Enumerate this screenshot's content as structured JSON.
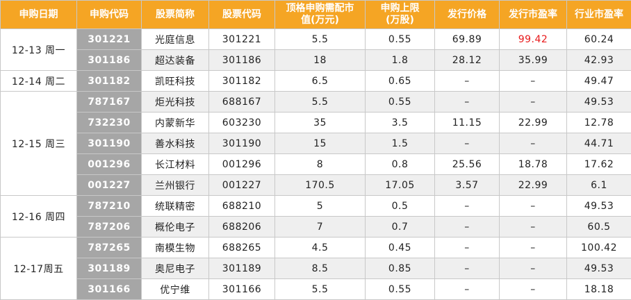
{
  "table": {
    "headers": [
      "申购日期",
      "申购代码",
      "股票简称",
      "股票代码",
      "顶格申购需配市\n值(万元)",
      "申购上限\n(万股)",
      "发行价格",
      "发行市盈率",
      "行业市盈率"
    ],
    "highlight": {
      "group": 0,
      "row": 0,
      "col": 6,
      "color": "#e8191b"
    },
    "groups": [
      {
        "date": "12-13 周一",
        "rows": [
          [
            "301221",
            "光庭信息",
            "301221",
            "5.5",
            "0.55",
            "69.89",
            "99.42",
            "60.24"
          ],
          [
            "301186",
            "超达装备",
            "301186",
            "18",
            "1.8",
            "28.12",
            "35.99",
            "42.93"
          ]
        ]
      },
      {
        "date": "12-14 周二",
        "rows": [
          [
            "301182",
            "凯旺科技",
            "301182",
            "6.5",
            "0.65",
            "–",
            "–",
            "49.47"
          ]
        ]
      },
      {
        "date": "12-15 周三",
        "rows": [
          [
            "787167",
            "炬光科技",
            "688167",
            "5.5",
            "0.55",
            "–",
            "–",
            "49.53"
          ],
          [
            "732230",
            "内蒙新华",
            "603230",
            "35",
            "3.5",
            "11.15",
            "22.99",
            "12.78"
          ],
          [
            "301190",
            "善水科技",
            "301190",
            "15",
            "1.5",
            "–",
            "–",
            "44.71"
          ],
          [
            "001296",
            "长江材料",
            "001296",
            "8",
            "0.8",
            "25.56",
            "18.78",
            "17.62"
          ],
          [
            "001227",
            "兰州银行",
            "001227",
            "170.5",
            "17.05",
            "3.57",
            "22.99",
            "6.1"
          ]
        ]
      },
      {
        "date": "12-16 周四",
        "rows": [
          [
            "787210",
            "统联精密",
            "688210",
            "5",
            "0.5",
            "–",
            "–",
            "49.53"
          ],
          [
            "787206",
            "概伦电子",
            "688206",
            "7",
            "0.7",
            "–",
            "–",
            "60.5"
          ]
        ]
      },
      {
        "date": "12-17周五",
        "rows": [
          [
            "787265",
            "南模生物",
            "688265",
            "4.5",
            "0.45",
            "–",
            "–",
            "100.42"
          ],
          [
            "301189",
            "奥尼电子",
            "301189",
            "8.5",
            "0.85",
            "–",
            "–",
            "49.53"
          ],
          [
            "301166",
            "优宁维",
            "301166",
            "5.5",
            "0.55",
            "–",
            "–",
            "18.18"
          ]
        ]
      }
    ]
  }
}
